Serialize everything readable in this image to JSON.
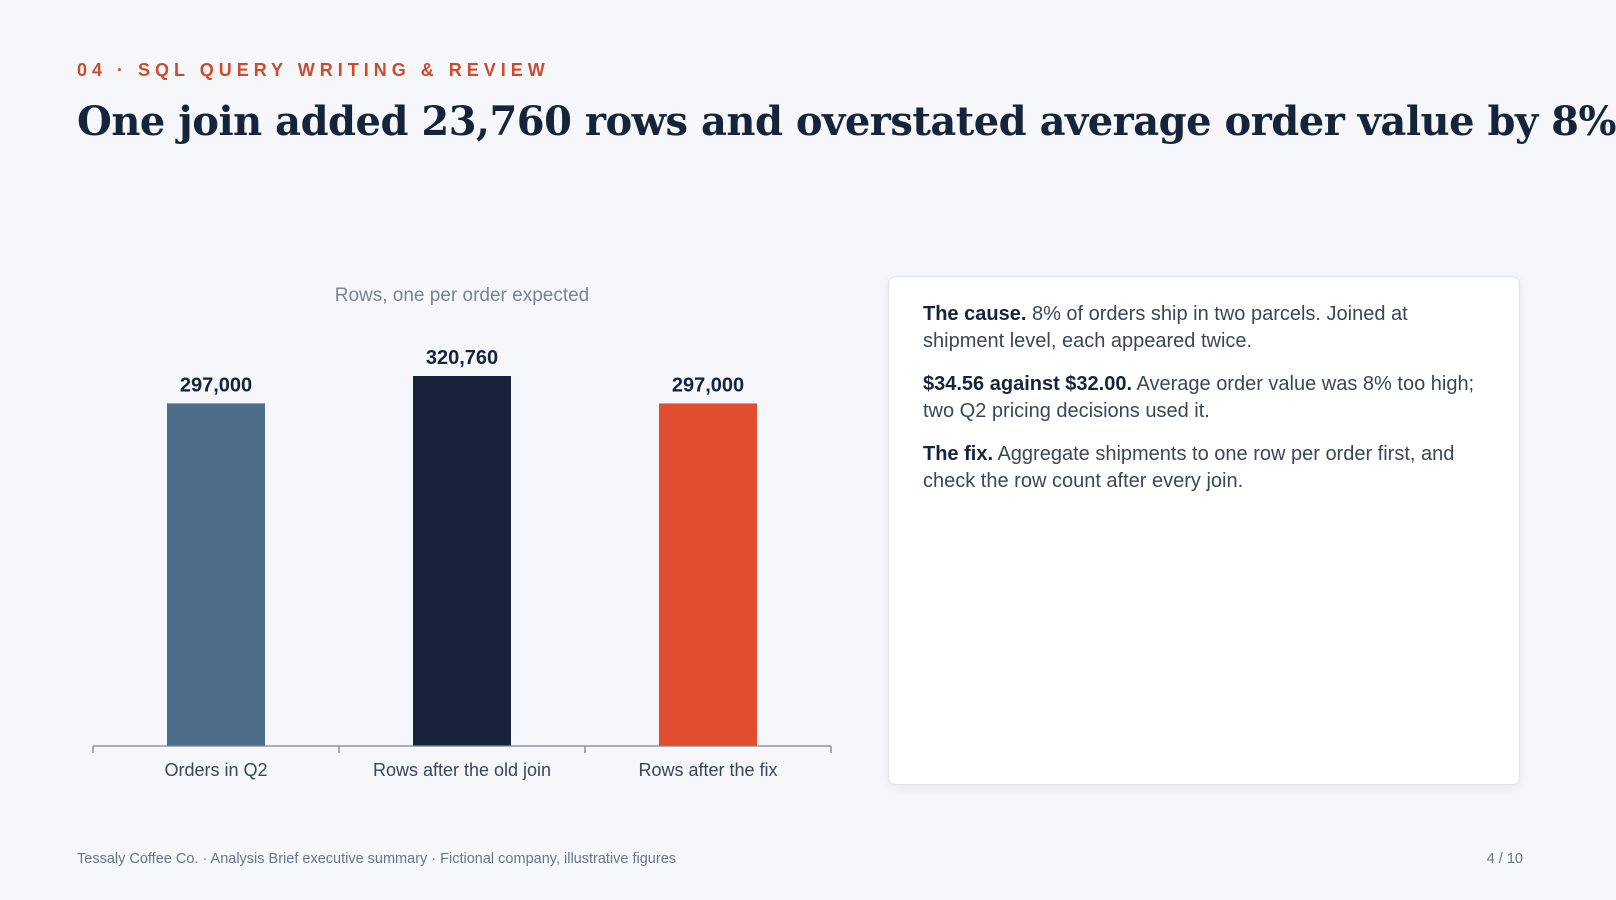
{
  "slide": {
    "eyebrow": "04 · SQL QUERY WRITING & REVIEW",
    "headline": "One join added 23,760 rows and overstated average order value by 8%"
  },
  "chart_data": {
    "type": "bar",
    "title": "Rows, one per order expected",
    "categories": [
      "Orders in Q2",
      "Rows after the old join",
      "Rows after the fix"
    ],
    "values": [
      297000,
      320760,
      297000
    ],
    "value_labels": [
      "297,000",
      "320,760",
      "297,000"
    ],
    "colors": [
      "#4d6d89",
      "#16233a",
      "#e04e2f"
    ],
    "xlabel": "",
    "ylabel": "",
    "ylim": [
      0,
      320760
    ],
    "grid": false,
    "legend": "none"
  },
  "notes": [
    {
      "lead": "The cause.",
      "text": " 8% of orders ship in two parcels. Joined at shipment level, each appeared twice."
    },
    {
      "lead": "$34.56 against $32.00.",
      "text": " Average order value was 8% too high; two Q2 pricing decisions used it."
    },
    {
      "lead": "The fix.",
      "text": " Aggregate shipments to one row per order first, and check the row count after every join."
    }
  ],
  "footer": {
    "left": "Tessaly Coffee Co. · Analysis Brief executive summary · Fictional company, illustrative figures",
    "page": "4 / 10"
  },
  "colors": {
    "accent": "#cf4a2c",
    "navy": "#16233a",
    "slate": "#4d6d89",
    "highlight": "#e04e2f",
    "background": "#f5f7fa"
  }
}
